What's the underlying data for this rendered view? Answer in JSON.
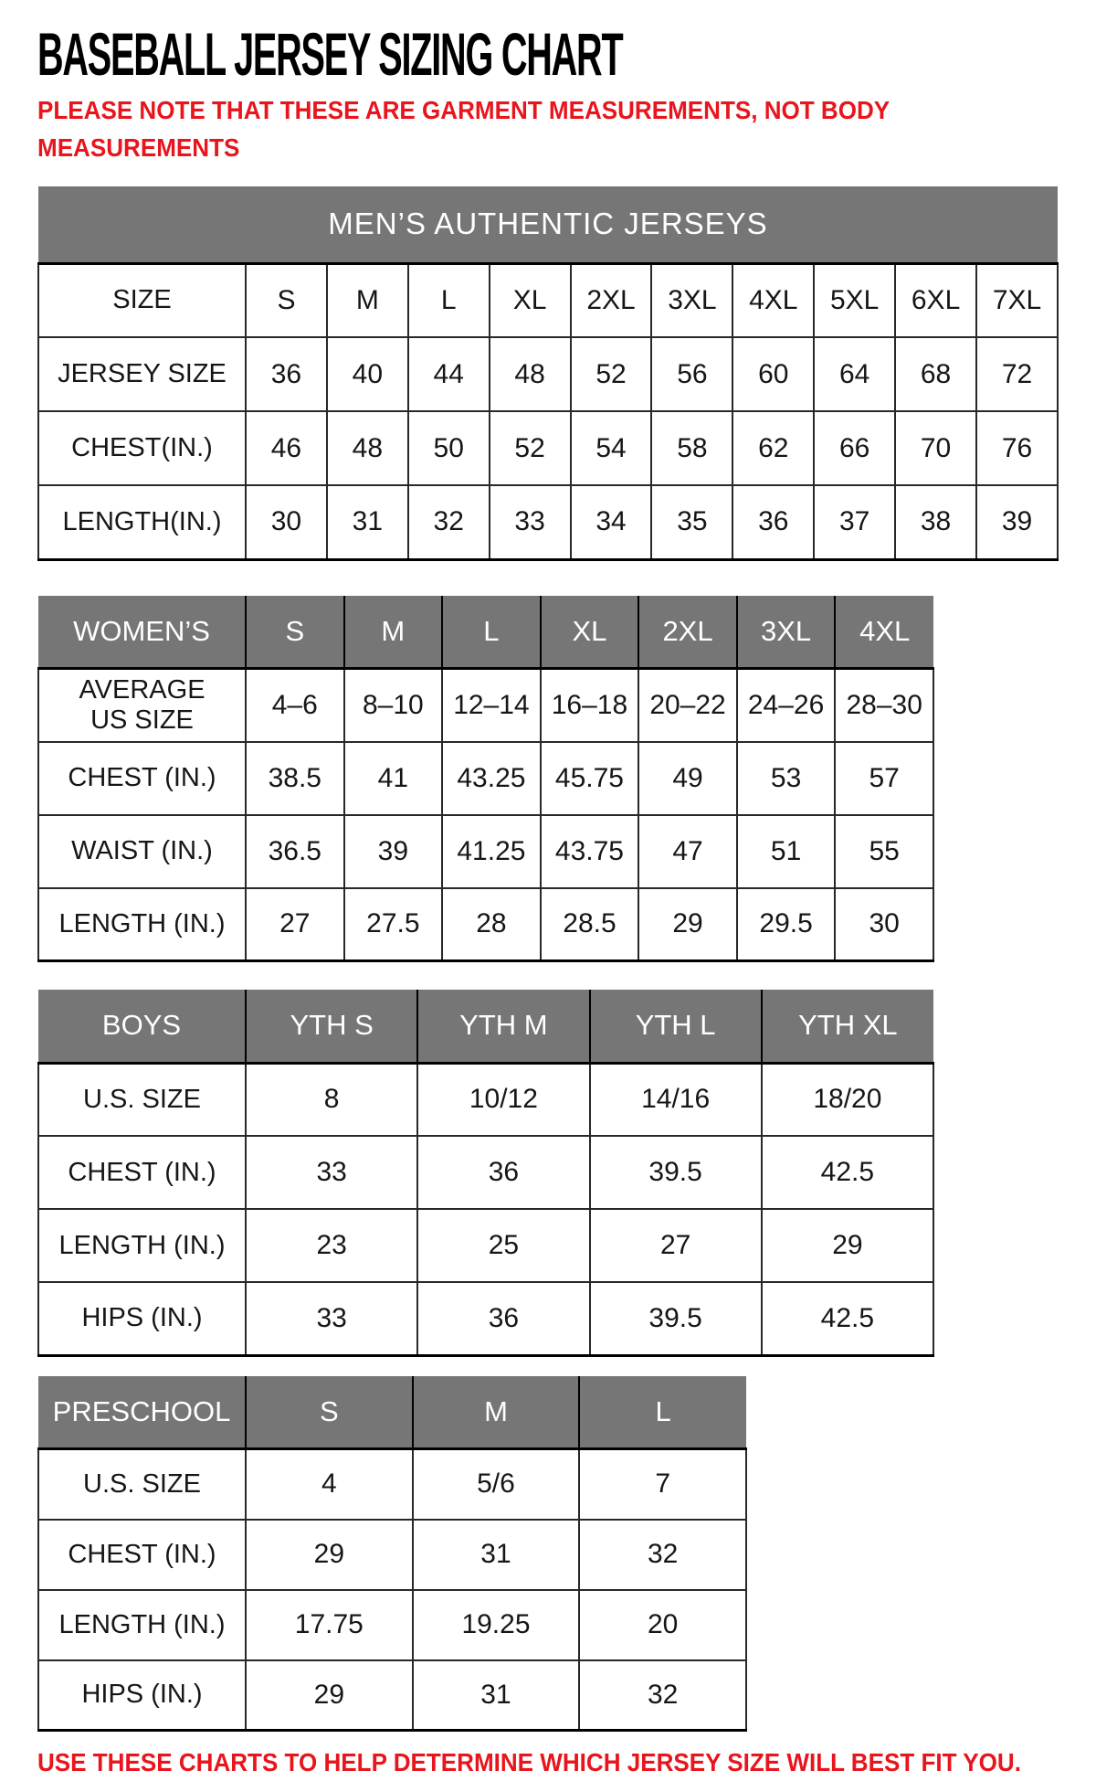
{
  "page": {
    "title": "BASEBALL JERSEY SIZING CHART",
    "note_top": "PLEASE NOTE THAT THESE ARE GARMENT MEASUREMENTS, NOT BODY\nMEASUREMENTS",
    "note_bottom": "USE THESE CHARTS TO HELP DETERMINE WHICH JERSEY SIZE WILL BEST FIT YOU.",
    "colors": {
      "accent_red": "#e8151d",
      "header_gray": "#767676",
      "header_text": "#ffffff",
      "border": "#282828"
    }
  },
  "tables": [
    {
      "name": "mens",
      "css": "t-mens",
      "banner": "MEN’S AUTHENTIC JERSEYS",
      "rows": [
        {
          "label": "SIZE",
          "values": [
            "S",
            "M",
            "L",
            "XL",
            "2XL",
            "3XL",
            "4XL",
            "5XL",
            "6XL",
            "7XL"
          ]
        },
        {
          "label": "JERSEY SIZE",
          "values": [
            "36",
            "40",
            "44",
            "48",
            "52",
            "56",
            "60",
            "64",
            "68",
            "72"
          ]
        },
        {
          "label": "CHEST(IN.)",
          "values": [
            "46",
            "48",
            "50",
            "52",
            "54",
            "58",
            "62",
            "66",
            "70",
            "76"
          ]
        },
        {
          "label": "LENGTH(IN.)",
          "values": [
            "30",
            "31",
            "32",
            "33",
            "34",
            "35",
            "36",
            "37",
            "38",
            "39"
          ]
        }
      ]
    },
    {
      "name": "womens",
      "css": "t-womens",
      "header_label": "WOMEN’S",
      "columns": [
        "S",
        "M",
        "L",
        "XL",
        "2XL",
        "3XL",
        "4XL"
      ],
      "rows": [
        {
          "label": "AVERAGE\nUS SIZE",
          "values": [
            "4–6",
            "8–10",
            "12–14",
            "16–18",
            "20–22",
            "24–26",
            "28–30"
          ]
        },
        {
          "label": "CHEST (IN.)",
          "values": [
            "38.5",
            "41",
            "43.25",
            "45.75",
            "49",
            "53",
            "57"
          ]
        },
        {
          "label": "WAIST (IN.)",
          "values": [
            "36.5",
            "39",
            "41.25",
            "43.75",
            "47",
            "51",
            "55"
          ]
        },
        {
          "label": "LENGTH (IN.)",
          "values": [
            "27",
            "27.5",
            "28",
            "28.5",
            "29",
            "29.5",
            "30"
          ]
        }
      ]
    },
    {
      "name": "boys",
      "css": "t-boys",
      "header_label": "BOYS",
      "columns": [
        "YTH S",
        "YTH M",
        "YTH L",
        "YTH XL"
      ],
      "rows": [
        {
          "label": "U.S. SIZE",
          "values": [
            "8",
            "10/12",
            "14/16",
            "18/20"
          ]
        },
        {
          "label": "CHEST (IN.)",
          "values": [
            "33",
            "36",
            "39.5",
            "42.5"
          ]
        },
        {
          "label": "LENGTH (IN.)",
          "values": [
            "23",
            "25",
            "27",
            "29"
          ]
        },
        {
          "label": "HIPS (IN.)",
          "values": [
            "33",
            "36",
            "39.5",
            "42.5"
          ]
        }
      ]
    },
    {
      "name": "preschool",
      "css": "t-preschool",
      "header_label": "PRESCHOOL",
      "columns": [
        "S",
        "M",
        "L"
      ],
      "rows": [
        {
          "label": "U.S. SIZE",
          "values": [
            "4",
            "5/6",
            "7"
          ]
        },
        {
          "label": "CHEST (IN.)",
          "values": [
            "29",
            "31",
            "32"
          ]
        },
        {
          "label": "LENGTH (IN.)",
          "values": [
            "17.75",
            "19.25",
            "20"
          ]
        },
        {
          "label": "HIPS (IN.)",
          "values": [
            "29",
            "31",
            "32"
          ]
        }
      ]
    }
  ]
}
